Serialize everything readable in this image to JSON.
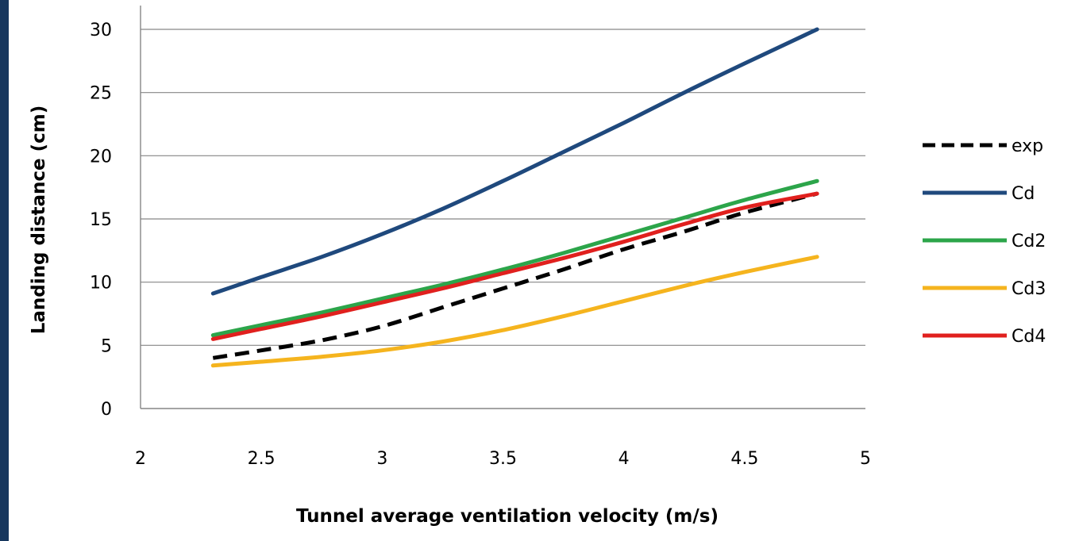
{
  "chart_data": {
    "type": "line",
    "title": "",
    "xlabel": "Tunnel average ventilation velocity (m/s)",
    "ylabel": "Landing distance (cm)",
    "xlim": [
      2,
      5
    ],
    "ylim": [
      0,
      30
    ],
    "xticks": [
      2,
      2.5,
      3,
      3.5,
      4,
      4.5,
      5
    ],
    "yticks": [
      0,
      5,
      10,
      15,
      20,
      25,
      30
    ],
    "xtick_labels": [
      "2",
      "2.5",
      "3",
      "3.5",
      "4",
      "4.5",
      "5"
    ],
    "ytick_labels": [
      "0",
      "5",
      "10",
      "15",
      "20",
      "25",
      "30"
    ],
    "grid": "horizontal",
    "legend_position": "right",
    "series": [
      {
        "name": "exp",
        "color": "#000000",
        "dash": "dashed",
        "x": [
          2.3,
          2.5,
          2.75,
          3.0,
          3.25,
          3.5,
          3.75,
          4.0,
          4.25,
          4.5,
          4.8
        ],
        "y": [
          4.0,
          4.6,
          5.4,
          6.5,
          8.0,
          9.5,
          11.0,
          12.6,
          14.0,
          15.5,
          17.0
        ]
      },
      {
        "name": "Cd",
        "color": "#1f497d",
        "dash": "solid",
        "x": [
          2.3,
          2.5,
          2.75,
          3.0,
          3.25,
          3.5,
          3.75,
          4.0,
          4.25,
          4.5,
          4.8
        ],
        "y": [
          9.1,
          10.4,
          12.0,
          13.8,
          15.8,
          18.0,
          20.3,
          22.6,
          25.0,
          27.3,
          30.0
        ]
      },
      {
        "name": "Cd2",
        "color": "#2ca54a",
        "dash": "solid",
        "x": [
          2.3,
          2.5,
          2.75,
          3.0,
          3.25,
          3.5,
          3.75,
          4.0,
          4.25,
          4.5,
          4.8
        ],
        "y": [
          5.8,
          6.6,
          7.6,
          8.7,
          9.8,
          11.0,
          12.3,
          13.7,
          15.1,
          16.5,
          18.0
        ]
      },
      {
        "name": "Cd3",
        "color": "#f5b41e",
        "dash": "solid",
        "x": [
          2.3,
          2.5,
          2.75,
          3.0,
          3.25,
          3.5,
          3.75,
          4.0,
          4.25,
          4.5,
          4.8
        ],
        "y": [
          3.4,
          3.7,
          4.1,
          4.6,
          5.3,
          6.2,
          7.3,
          8.5,
          9.7,
          10.8,
          12.0
        ]
      },
      {
        "name": "Cd4",
        "color": "#e0201e",
        "dash": "solid",
        "x": [
          2.3,
          2.5,
          2.75,
          3.0,
          3.25,
          3.5,
          3.75,
          4.0,
          4.25,
          4.5,
          4.8
        ],
        "y": [
          5.5,
          6.3,
          7.3,
          8.4,
          9.5,
          10.7,
          11.9,
          13.2,
          14.6,
          15.9,
          17.0
        ]
      }
    ]
  }
}
